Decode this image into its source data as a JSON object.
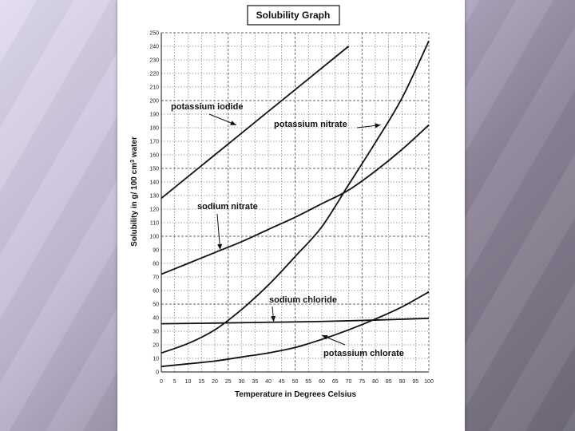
{
  "chart_data": {
    "type": "line",
    "title": "Solubility Graph",
    "xlabel": "Temperature in Degrees Celsius",
    "ylabel": "Solubility in g/ 100 cm",
    "ylabel_sup": "3",
    "ylabel_tail": " water",
    "xlim": [
      0,
      100
    ],
    "ylim": [
      0,
      250
    ],
    "x_ticks": [
      0,
      5,
      10,
      15,
      20,
      25,
      30,
      35,
      40,
      45,
      50,
      55,
      60,
      65,
      70,
      75,
      80,
      85,
      90,
      95,
      100
    ],
    "y_ticks": [
      0,
      10,
      20,
      30,
      40,
      50,
      60,
      70,
      80,
      90,
      100,
      110,
      120,
      130,
      140,
      150,
      160,
      170,
      180,
      190,
      200,
      210,
      220,
      230,
      240,
      250
    ],
    "grid": true,
    "legend": "none",
    "series": [
      {
        "name": "potassium iodide",
        "x": [
          0,
          10,
          20,
          30,
          40,
          50,
          60,
          70
        ],
        "y": [
          128,
          144,
          160,
          176,
          192,
          208,
          224,
          240
        ]
      },
      {
        "name": "potassium nitrate",
        "x": [
          0,
          10,
          20,
          30,
          40,
          50,
          60,
          70,
          80,
          90,
          100
        ],
        "y": [
          14,
          21,
          31,
          46,
          64,
          85,
          107,
          138,
          169,
          202,
          244
        ]
      },
      {
        "name": "sodium nitrate",
        "x": [
          0,
          10,
          20,
          30,
          40,
          50,
          60,
          70,
          80,
          90,
          100
        ],
        "y": [
          72,
          80,
          88,
          96,
          105,
          114,
          124,
          134,
          148,
          164,
          182
        ]
      },
      {
        "name": "sodium chloride",
        "x": [
          0,
          20,
          40,
          60,
          80,
          100
        ],
        "y": [
          35.5,
          36,
          36.6,
          37.2,
          38.2,
          39.5
        ]
      },
      {
        "name": "potassium chlorate",
        "x": [
          0,
          10,
          20,
          30,
          40,
          50,
          60,
          70,
          80,
          90,
          100
        ],
        "y": [
          4,
          6,
          8,
          11,
          14,
          18,
          24,
          31,
          39,
          48,
          59
        ]
      }
    ],
    "annotations": [
      {
        "text": "potassium iodide",
        "series": "potassium iodide",
        "point": [
          28,
          182
        ]
      },
      {
        "text": "potassium nitrate",
        "series": "potassium nitrate",
        "point": [
          82,
          182
        ]
      },
      {
        "text": "sodium nitrate",
        "series": "sodium nitrate",
        "point": [
          22,
          90
        ]
      },
      {
        "text": "sodium chloride",
        "series": "sodium chloride",
        "point": [
          42,
          37
        ]
      },
      {
        "text": "potassium chlorate",
        "series": "potassium chlorate",
        "point": [
          60,
          27
        ]
      }
    ]
  }
}
